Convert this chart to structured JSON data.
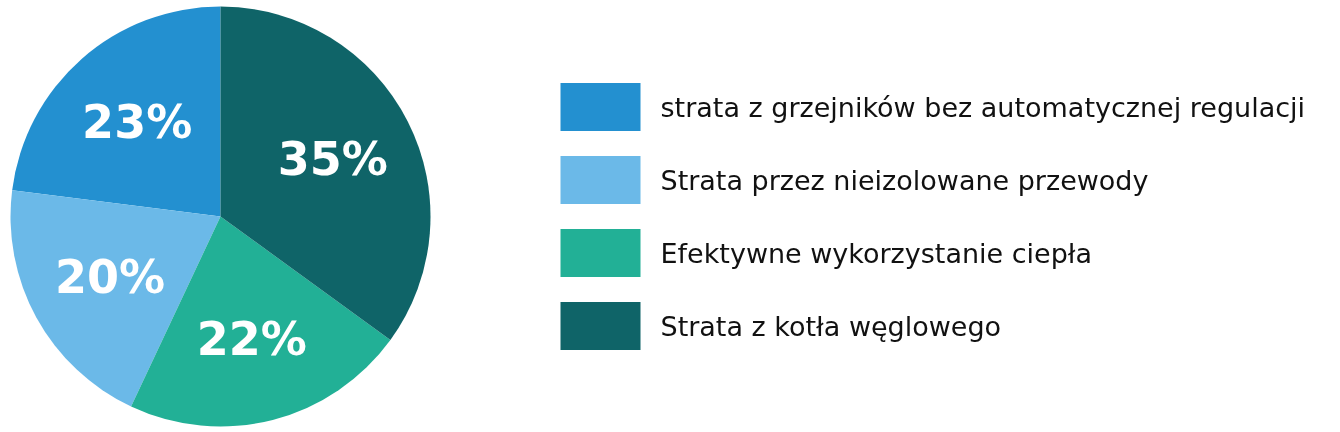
{
  "chart_data": {
    "type": "pie",
    "categories": [
      "strata z grzejników bez automatycznej regulacji",
      "Strata przez nieizolowane przewody",
      "Efektywne wykorzystanie ciepła",
      "Strata z kotła węglowego"
    ],
    "values": [
      23,
      20,
      22,
      35
    ],
    "colors": [
      "#2390d0",
      "#6bb9e8",
      "#22b096",
      "#0f6468"
    ],
    "value_labels": [
      "23%",
      "20%",
      "22%",
      "35%"
    ],
    "legend": "right"
  }
}
